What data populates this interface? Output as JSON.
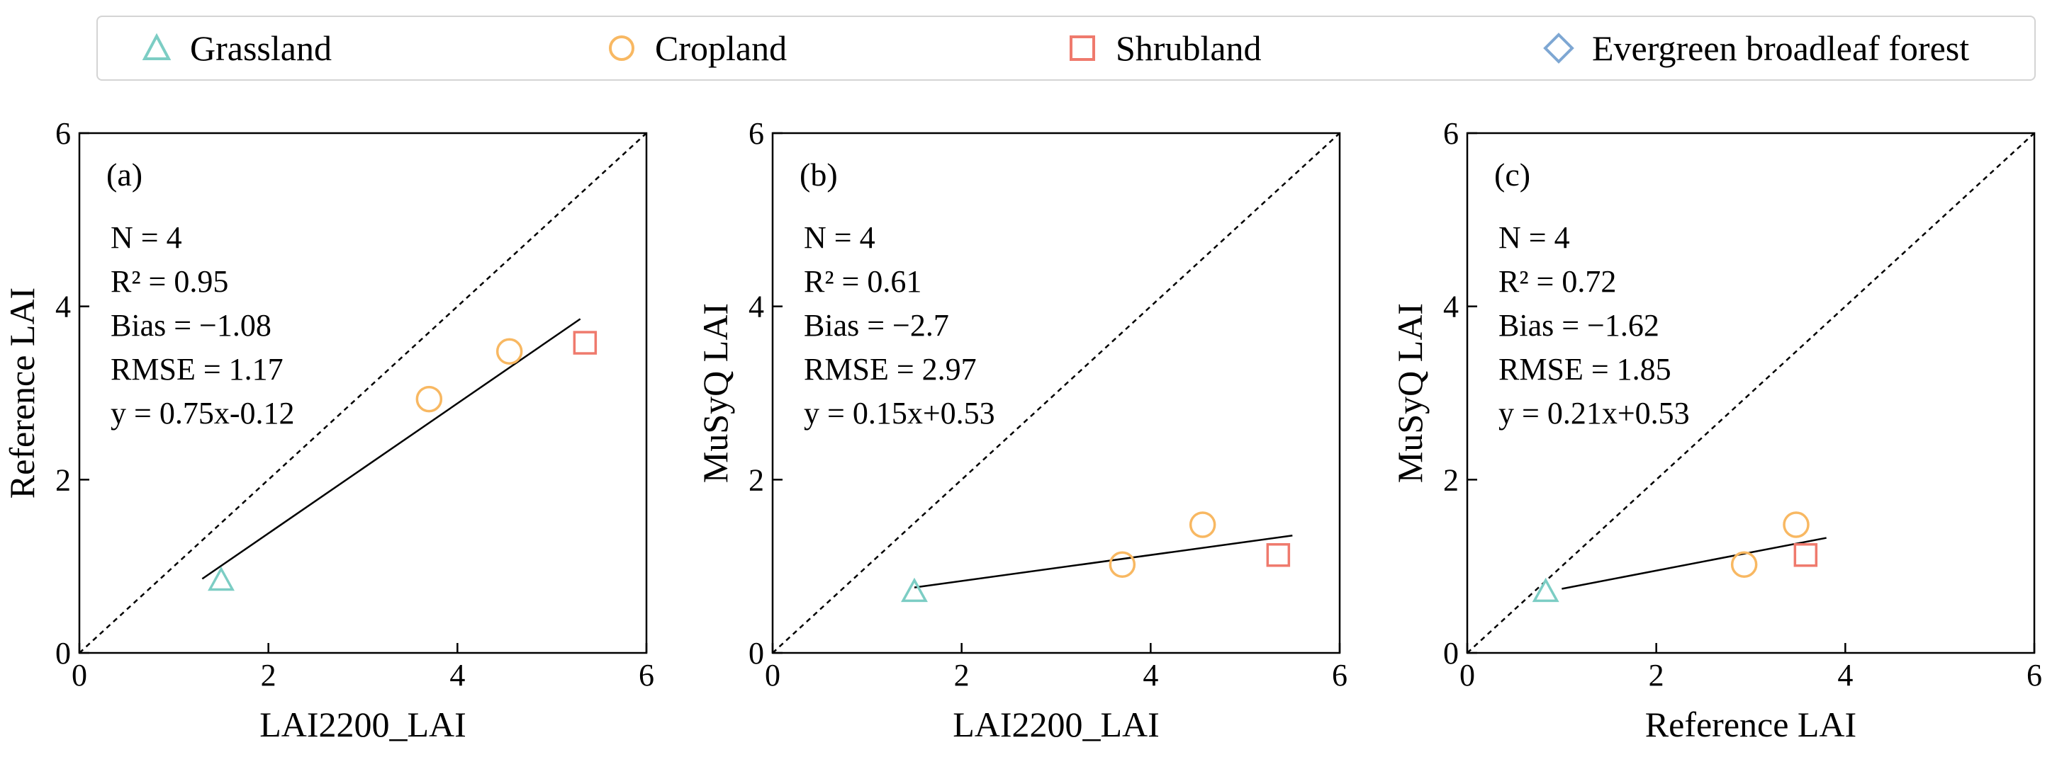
{
  "legend": {
    "items": [
      {
        "name": "Grassland",
        "marker": "triangle",
        "color": "#7ccdc4"
      },
      {
        "name": "Cropland",
        "marker": "circle",
        "color": "#f8b862"
      },
      {
        "name": "Shrubland",
        "marker": "square",
        "color": "#ef7a6d"
      },
      {
        "name": "Evergreen broadleaf forest",
        "marker": "diamond",
        "color": "#7ea7d3"
      }
    ]
  },
  "chart_data": [
    {
      "type": "scatter",
      "panel_label": "(a)",
      "xlabel": "LAI2200_LAI",
      "ylabel": "Reference LAI",
      "xlim": [
        0,
        6
      ],
      "ylim": [
        0,
        6
      ],
      "xticks": [
        "0",
        "2",
        "4",
        "6"
      ],
      "yticks": [
        "0",
        "2",
        "4",
        "6"
      ],
      "points": [
        {
          "class": "Grassland",
          "x": 1.5,
          "y": 0.83
        },
        {
          "class": "Cropland",
          "x": 3.7,
          "y": 2.93
        },
        {
          "class": "Cropland",
          "x": 4.55,
          "y": 3.48
        },
        {
          "class": "Shrubland",
          "x": 5.35,
          "y": 3.58
        }
      ],
      "fit_line": {
        "x": [
          1.3,
          5.3
        ],
        "y": [
          0.855,
          3.855
        ]
      },
      "stats": [
        "N = 4",
        "R² = 0.95",
        "Bias = −1.08",
        "RMSE = 1.17",
        "y = 0.75x-0.12"
      ]
    },
    {
      "type": "scatter",
      "panel_label": "(b)",
      "xlabel": "LAI2200_LAI",
      "ylabel": "MuSyQ LAI",
      "xlim": [
        0,
        6
      ],
      "ylim": [
        0,
        6
      ],
      "xticks": [
        "0",
        "2",
        "4",
        "6"
      ],
      "yticks": [
        "0",
        "2",
        "4",
        "6"
      ],
      "points": [
        {
          "class": "Grassland",
          "x": 1.5,
          "y": 0.7
        },
        {
          "class": "Cropland",
          "x": 3.7,
          "y": 1.02
        },
        {
          "class": "Cropland",
          "x": 4.55,
          "y": 1.48
        },
        {
          "class": "Shrubland",
          "x": 5.35,
          "y": 1.13
        }
      ],
      "fit_line": {
        "x": [
          1.5,
          5.5
        ],
        "y": [
          0.755,
          1.355
        ]
      },
      "stats": [
        "N = 4",
        "R² = 0.61",
        "Bias = −2.7",
        "RMSE = 2.97",
        "y = 0.15x+0.53"
      ]
    },
    {
      "type": "scatter",
      "panel_label": "(c)",
      "xlabel": "Reference LAI",
      "ylabel": "MuSyQ LAI",
      "xlim": [
        0,
        6
      ],
      "ylim": [
        0,
        6
      ],
      "xticks": [
        "0",
        "2",
        "4",
        "6"
      ],
      "yticks": [
        "0",
        "2",
        "4",
        "6"
      ],
      "points": [
        {
          "class": "Grassland",
          "x": 0.83,
          "y": 0.7
        },
        {
          "class": "Cropland",
          "x": 2.93,
          "y": 1.02
        },
        {
          "class": "Cropland",
          "x": 3.48,
          "y": 1.48
        },
        {
          "class": "Shrubland",
          "x": 3.58,
          "y": 1.13
        }
      ],
      "fit_line": {
        "x": [
          1.0,
          3.8
        ],
        "y": [
          0.74,
          1.328
        ]
      },
      "stats": [
        "N = 4",
        "R² = 0.72",
        "Bias = −1.62",
        "RMSE = 1.85",
        "y = 0.21x+0.53"
      ]
    }
  ]
}
